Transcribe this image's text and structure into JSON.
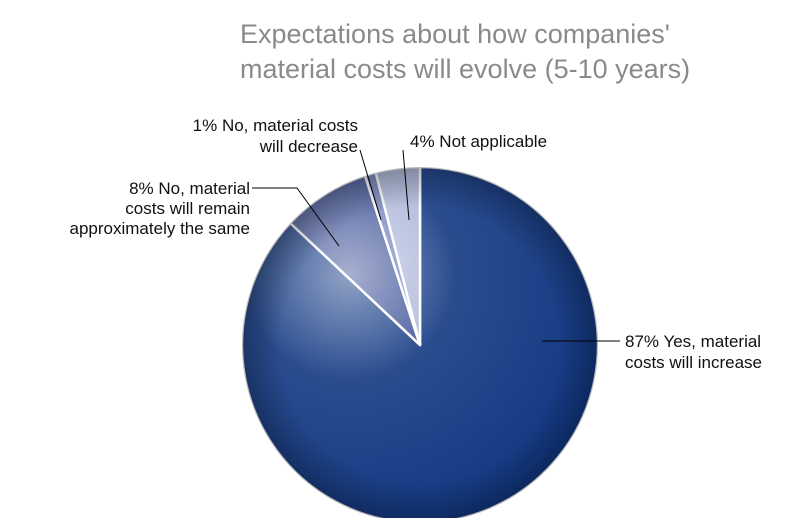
{
  "chart_data": {
    "type": "pie",
    "title": [
      "Expectations about how companies'",
      "material costs will evolve (5-10 years)"
    ],
    "slices": [
      {
        "pct": 87,
        "label": [
          "87% Yes, material",
          "costs will increase"
        ],
        "color": "#0d3480"
      },
      {
        "pct": 8,
        "label": [
          "8% No, material",
          "costs will remain",
          "approximately the same"
        ],
        "color": "#3a4f96"
      },
      {
        "pct": 1,
        "label": [
          "1% No, material costs",
          "will decrease"
        ],
        "color": "#6a7bb8"
      },
      {
        "pct": 4,
        "label": [
          "4% Not applicable"
        ],
        "color": "#aab4d8"
      }
    ],
    "start": "12 o'clock",
    "direction": "clockwise"
  }
}
